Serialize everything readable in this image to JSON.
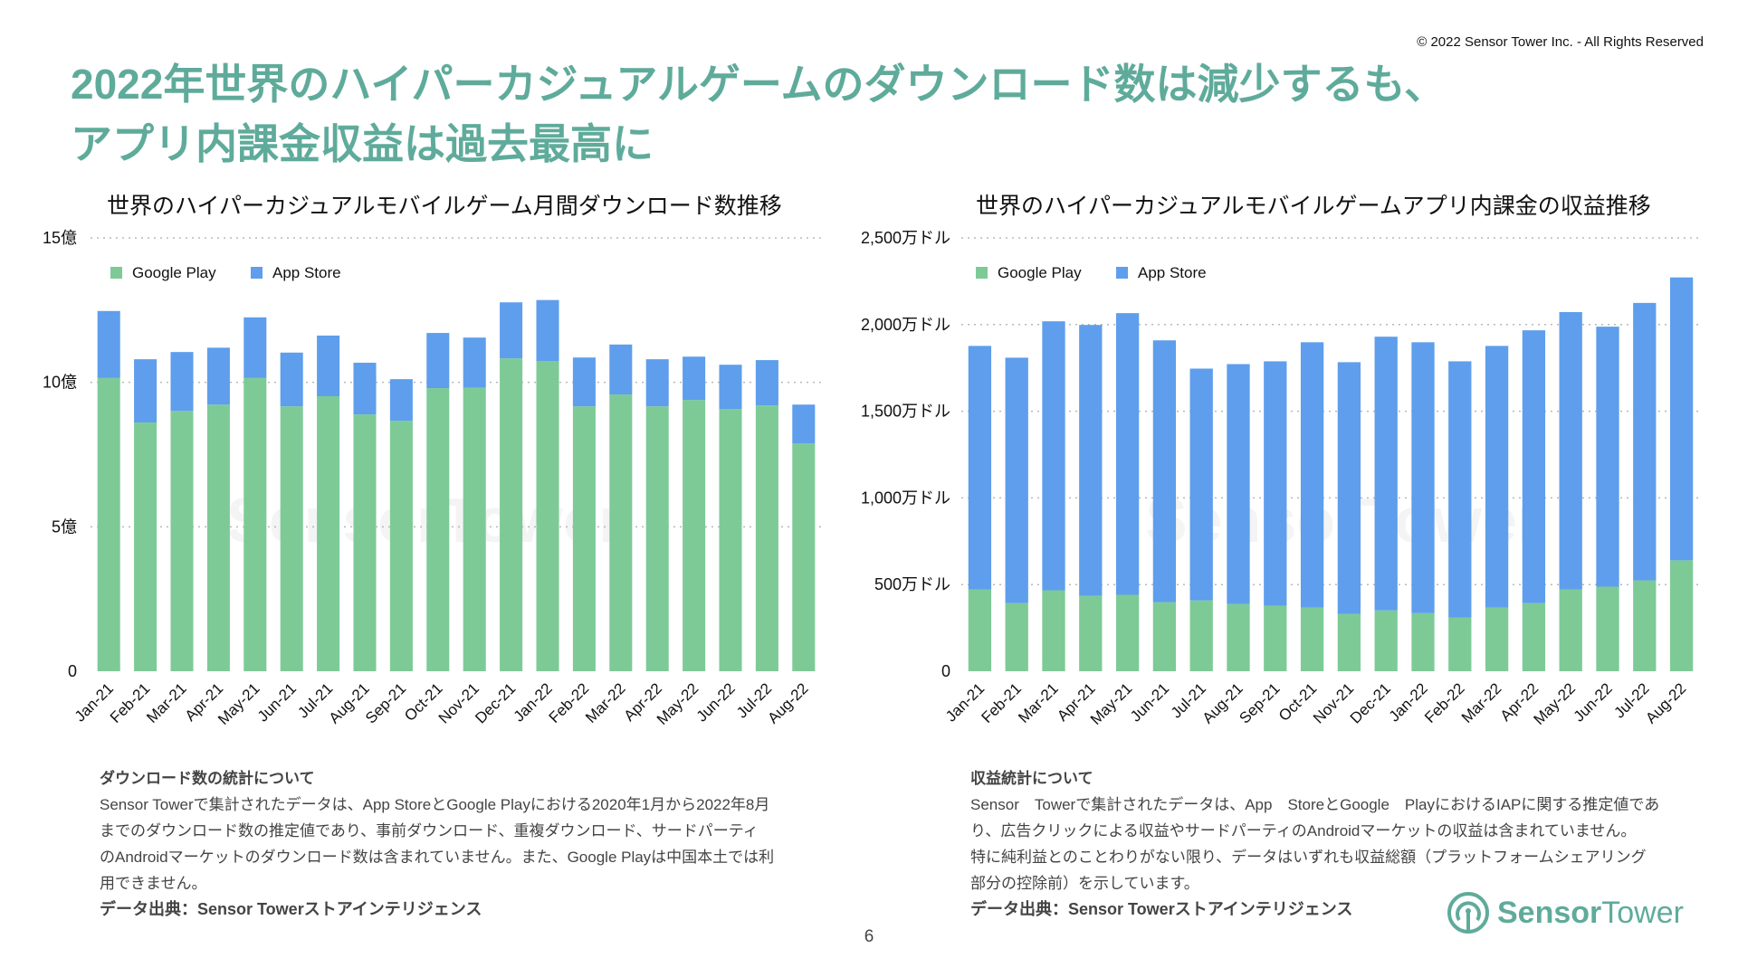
{
  "copyright": "© 2022 Sensor Tower Inc. - All Rights Reserved",
  "title": {
    "line1": "2022年世界のハイパーカジュアルゲームのダウンロード数は減少するも、",
    "line2": "アプリ内課金収益は過去最高に"
  },
  "colors": {
    "title": "#5fab9b",
    "google_play": "#7dca97",
    "app_store": "#5e9eec"
  },
  "chart_data": [
    {
      "type": "bar",
      "stacked": true,
      "title": "世界のハイパーカジュアルモバイルゲーム月間ダウンロード数推移",
      "xlabel": "",
      "ylabel": "",
      "ylim": [
        0,
        15
      ],
      "unit": "億",
      "yticks": [
        {
          "value": 0,
          "label": "0"
        },
        {
          "value": 5,
          "label": "5億"
        },
        {
          "value": 10,
          "label": "10億"
        },
        {
          "value": 15,
          "label": "15億"
        }
      ],
      "grid": true,
      "legend_position": "top-left",
      "categories": [
        "Jan-21",
        "Feb-21",
        "Mar-21",
        "Apr-21",
        "May-21",
        "Jun-21",
        "Jul-21",
        "Aug-21",
        "Sep-21",
        "Oct-21",
        "Nov-21",
        "Dec-21",
        "Jan-22",
        "Feb-22",
        "Mar-22",
        "Apr-22",
        "May-22",
        "Jun-22",
        "Jul-22",
        "Aug-22"
      ],
      "series": [
        {
          "name": "Google Play",
          "color": "#7dca97",
          "values": [
            10.15,
            8.61,
            9.01,
            9.23,
            10.15,
            9.17,
            9.52,
            8.89,
            8.67,
            9.8,
            9.81,
            10.83,
            10.74,
            9.17,
            9.58,
            9.17,
            9.39,
            9.08,
            9.2,
            7.89
          ]
        },
        {
          "name": "App Store",
          "color": "#5e9eec",
          "values": [
            2.32,
            2.19,
            2.04,
            1.97,
            2.1,
            1.86,
            2.1,
            1.79,
            1.44,
            1.91,
            1.74,
            1.94,
            2.11,
            1.69,
            1.73,
            1.63,
            1.5,
            1.53,
            1.57,
            1.34
          ]
        }
      ]
    },
    {
      "type": "bar",
      "stacked": true,
      "title": "世界のハイパーカジュアルモバイルゲームアプリ内課金の収益推移",
      "xlabel": "",
      "ylabel": "",
      "ylim": [
        0,
        2500
      ],
      "unit": "万ドル",
      "yticks": [
        {
          "value": 0,
          "label": "0"
        },
        {
          "value": 500,
          "label": "500万ドル"
        },
        {
          "value": 1000,
          "label": "1,000万ドル"
        },
        {
          "value": 1500,
          "label": "1,500万ドル"
        },
        {
          "value": 2000,
          "label": "2,000万ドル"
        },
        {
          "value": 2500,
          "label": "2,500万ドル"
        }
      ],
      "grid": true,
      "legend_position": "top-left",
      "categories": [
        "Jan-21",
        "Feb-21",
        "Mar-21",
        "Apr-21",
        "May-21",
        "Jun-21",
        "Jul-21",
        "Aug-21",
        "Sep-21",
        "Oct-21",
        "Nov-21",
        "Dec-21",
        "Jan-22",
        "Feb-22",
        "Mar-22",
        "Apr-22",
        "May-22",
        "Jun-22",
        "Jul-22",
        "Aug-22"
      ],
      "series": [
        {
          "name": "Google Play",
          "color": "#7dca97",
          "values": [
            472,
            393,
            467,
            435,
            441,
            398,
            409,
            388,
            377,
            367,
            330,
            351,
            335,
            309,
            367,
            393,
            472,
            488,
            524,
            640
          ]
        },
        {
          "name": "App Store",
          "color": "#5e9eec",
          "values": [
            1405,
            1416,
            1552,
            1563,
            1625,
            1511,
            1337,
            1384,
            1411,
            1531,
            1453,
            1579,
            1563,
            1479,
            1510,
            1574,
            1600,
            1500,
            1601,
            1632
          ]
        }
      ]
    }
  ],
  "notes": {
    "downloads": {
      "heading": "ダウンロード数の統計について",
      "lines": [
        "Sensor Towerで集計されたデータは、App StoreとGoogle Playにおける2020年1月から2022年8月",
        "までのダウンロード数の推定値であり、事前ダウンロード、重複ダウンロード、サードパーティ",
        "のAndroidマーケットのダウンロード数は含まれていません。また、Google Playは中国本土では利",
        "用できません。"
      ],
      "source": "データ出典：Sensor Towerストアインテリジェンス"
    },
    "revenue": {
      "heading": "収益統計について",
      "lines": [
        "Sensor　Towerで集計されたデータは、App　StoreとGoogle　PlayにおけるIAPに関する推定値であ",
        "り、広告クリックによる収益やサードパーティのAndroidマーケットの収益は含まれていません。",
        "特に純利益とのことわりがない限り、データはいずれも収益総額（プラットフォームシェアリング",
        "部分の控除前）を示しています。"
      ],
      "source": "データ出典：Sensor Towerストアインテリジェンス"
    }
  },
  "page_number": "6",
  "logo": {
    "bold": "Sensor",
    "light": "Tower",
    "icon": "sensor-tower-logo-icon"
  },
  "watermark": "SensorTower"
}
